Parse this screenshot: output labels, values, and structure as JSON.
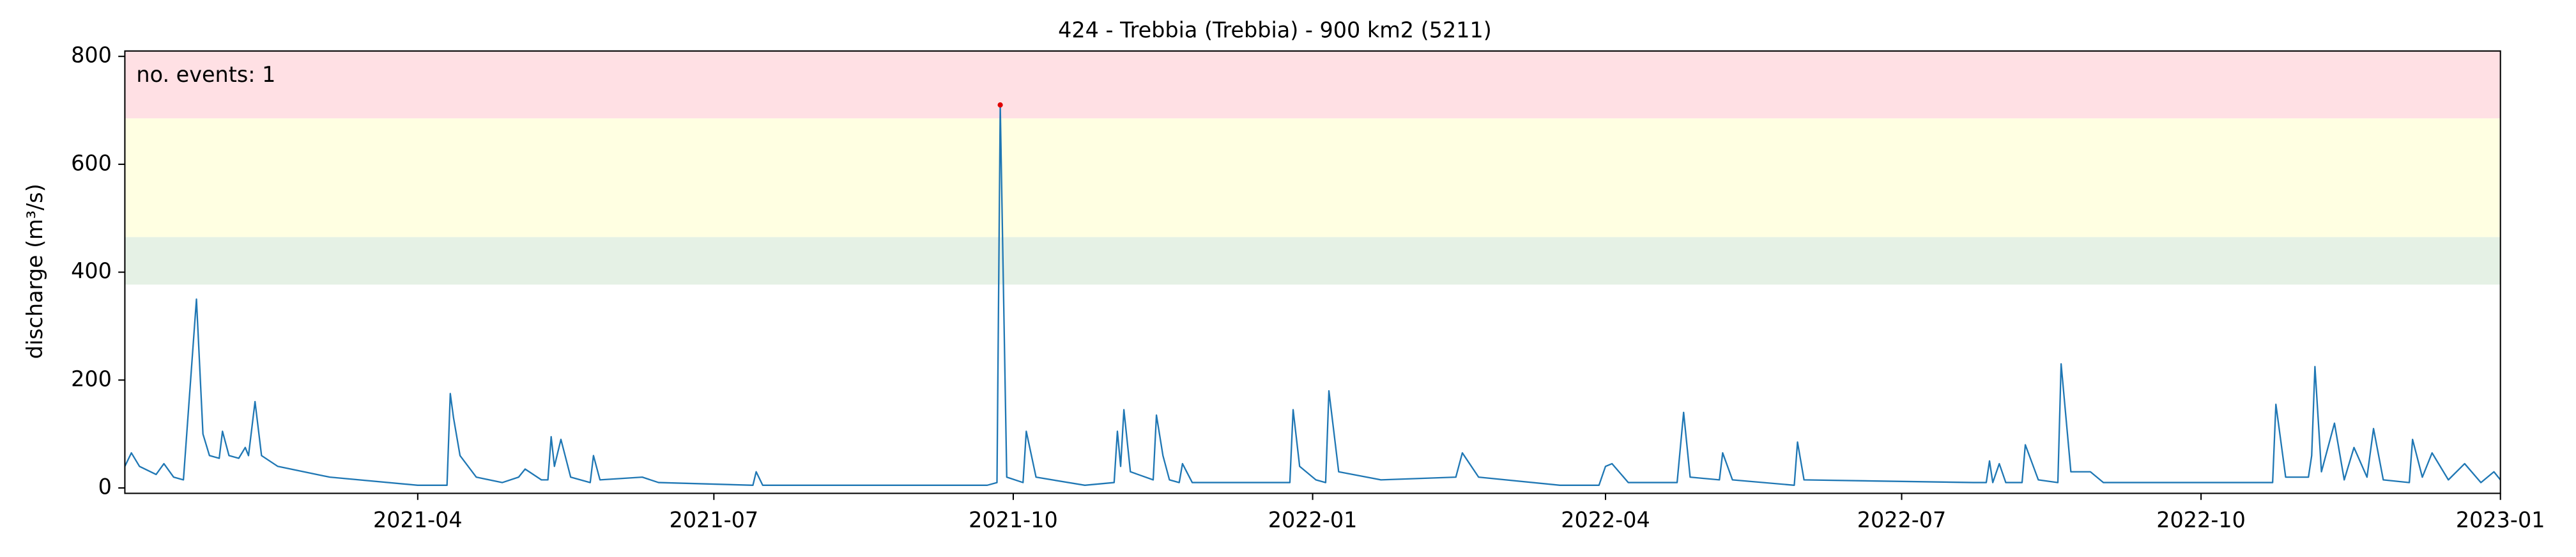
{
  "chart_data": {
    "type": "line",
    "title": "424 - Trebbia (Trebbia) - 900 km2 (5211)",
    "y_label": "discharge (m³/s)",
    "annotation": "no. events: 1",
    "annotation_color": "#e00000",
    "color": "#1f77b4",
    "xlim": [
      0,
      730
    ],
    "xticks": [
      {
        "value": 90,
        "label": "2021-04"
      },
      {
        "value": 181,
        "label": "2021-07"
      },
      {
        "value": 273,
        "label": "2021-10"
      },
      {
        "value": 365,
        "label": "2022-01"
      },
      {
        "value": 455,
        "label": "2022-04"
      },
      {
        "value": 546,
        "label": "2022-07"
      },
      {
        "value": 638,
        "label": "2022-10"
      },
      {
        "value": 730,
        "label": "2023-01"
      }
    ],
    "ylim": [
      -10,
      810
    ],
    "yticks": [
      0,
      200,
      400,
      600,
      800
    ],
    "bands": [
      {
        "from": 685,
        "to": 810,
        "color": "#ffe0e4"
      },
      {
        "from": 465,
        "to": 685,
        "color": "#ffffe2"
      },
      {
        "from": 377,
        "to": 465,
        "color": "#e5f1e5"
      }
    ],
    "events": [
      {
        "x": 269,
        "value": 710,
        "color": "#e00000"
      }
    ],
    "x": [
      0,
      2,
      4.5,
      9.6,
      12,
      15,
      18,
      22,
      24,
      26,
      29,
      30,
      32,
      35,
      37,
      38,
      40,
      42,
      47,
      63,
      90,
      99,
      100,
      101,
      103,
      108,
      116,
      121,
      123,
      128,
      130,
      131,
      132,
      134,
      137,
      143,
      144,
      146,
      159,
      164,
      193,
      194,
      196,
      265,
      268,
      269,
      271,
      276,
      277,
      280,
      295,
      304,
      305,
      306,
      307,
      309,
      316,
      317,
      319,
      321,
      324,
      325,
      328,
      358,
      359,
      361,
      366,
      369,
      370,
      373,
      386,
      409,
      411,
      416,
      441,
      453,
      455,
      457,
      462,
      477,
      479,
      481,
      490,
      491,
      494,
      513,
      514,
      516,
      568,
      572,
      573,
      574,
      576,
      578,
      583,
      584,
      588,
      594,
      595,
      598,
      604,
      608,
      660,
      661,
      664,
      671,
      672,
      673,
      675,
      679,
      682,
      685,
      689,
      691,
      694,
      702,
      703,
      706,
      709,
      714,
      719,
      724,
      728,
      730
    ],
    "values": [
      40,
      65,
      40,
      25,
      45,
      20,
      15,
      350,
      100,
      60,
      55,
      105,
      60,
      55,
      75,
      60,
      160,
      60,
      40,
      20,
      5,
      5,
      175,
      130,
      60,
      20,
      10,
      20,
      35,
      15,
      15,
      95,
      40,
      90,
      20,
      10,
      60,
      15,
      20,
      10,
      5,
      30,
      5,
      5,
      10,
      710,
      20,
      10,
      105,
      20,
      5,
      10,
      105,
      40,
      145,
      30,
      15,
      135,
      60,
      15,
      10,
      45,
      10,
      10,
      145,
      40,
      15,
      10,
      180,
      30,
      15,
      20,
      65,
      20,
      5,
      5,
      40,
      45,
      10,
      10,
      140,
      20,
      15,
      65,
      15,
      5,
      85,
      15,
      10,
      10,
      50,
      10,
      45,
      10,
      10,
      80,
      15,
      10,
      230,
      30,
      30,
      10,
      10,
      155,
      20,
      20,
      60,
      225,
      30,
      120,
      15,
      75,
      20,
      110,
      15,
      10,
      90,
      20,
      65,
      15,
      45,
      10,
      30,
      15
    ]
  }
}
